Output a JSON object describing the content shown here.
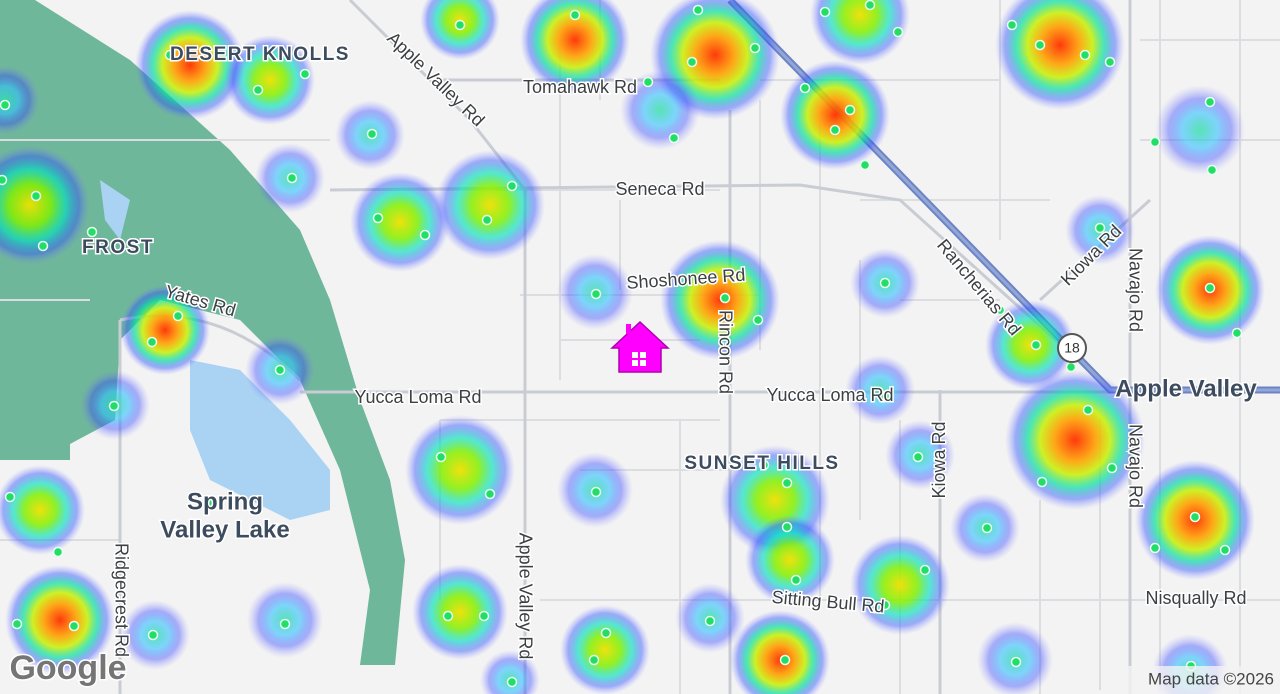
{
  "map": {
    "labels": {
      "desert_knolls": "DESERT KNOLLS",
      "frost": "FROST",
      "sunset_hills": "SUNSET HILLS",
      "spring_valley_lake_1": "Spring",
      "spring_valley_lake_2": "Valley Lake",
      "apple_valley": "Apple Valley",
      "highway": "18"
    },
    "roads": {
      "apple_valley_rd_north": "Apple Valley Rd",
      "tomahawk_rd": "Tomahawk Rd",
      "seneca_rd": "Seneca Rd",
      "shoshonee_rd": "Shoshonee Rd",
      "yates_rd": "Yates Rd",
      "rincon_rd": "Rincon Rd",
      "yucca_loma_rd_west": "Yucca Loma Rd",
      "yucca_loma_rd_east": "Yucca Loma Rd",
      "rancherias_rd": "Rancherias Rd",
      "kiowa_rd_north": "Kiowa Rd",
      "kiowa_rd_south": "Kiowa Rd",
      "navajo_rd_north": "Navajo Rd",
      "navajo_rd_south": "Navajo Rd",
      "ridgecrest_rd": "Ridgecrest Rd",
      "apple_valley_rd_south": "Apple Valley Rd",
      "sitting_bull_rd": "Sitting Bull Rd",
      "nisqually_rd": "Nisqually Rd"
    },
    "footer": {
      "logo": "Google",
      "attribution": "Map data ©2026"
    }
  }
}
